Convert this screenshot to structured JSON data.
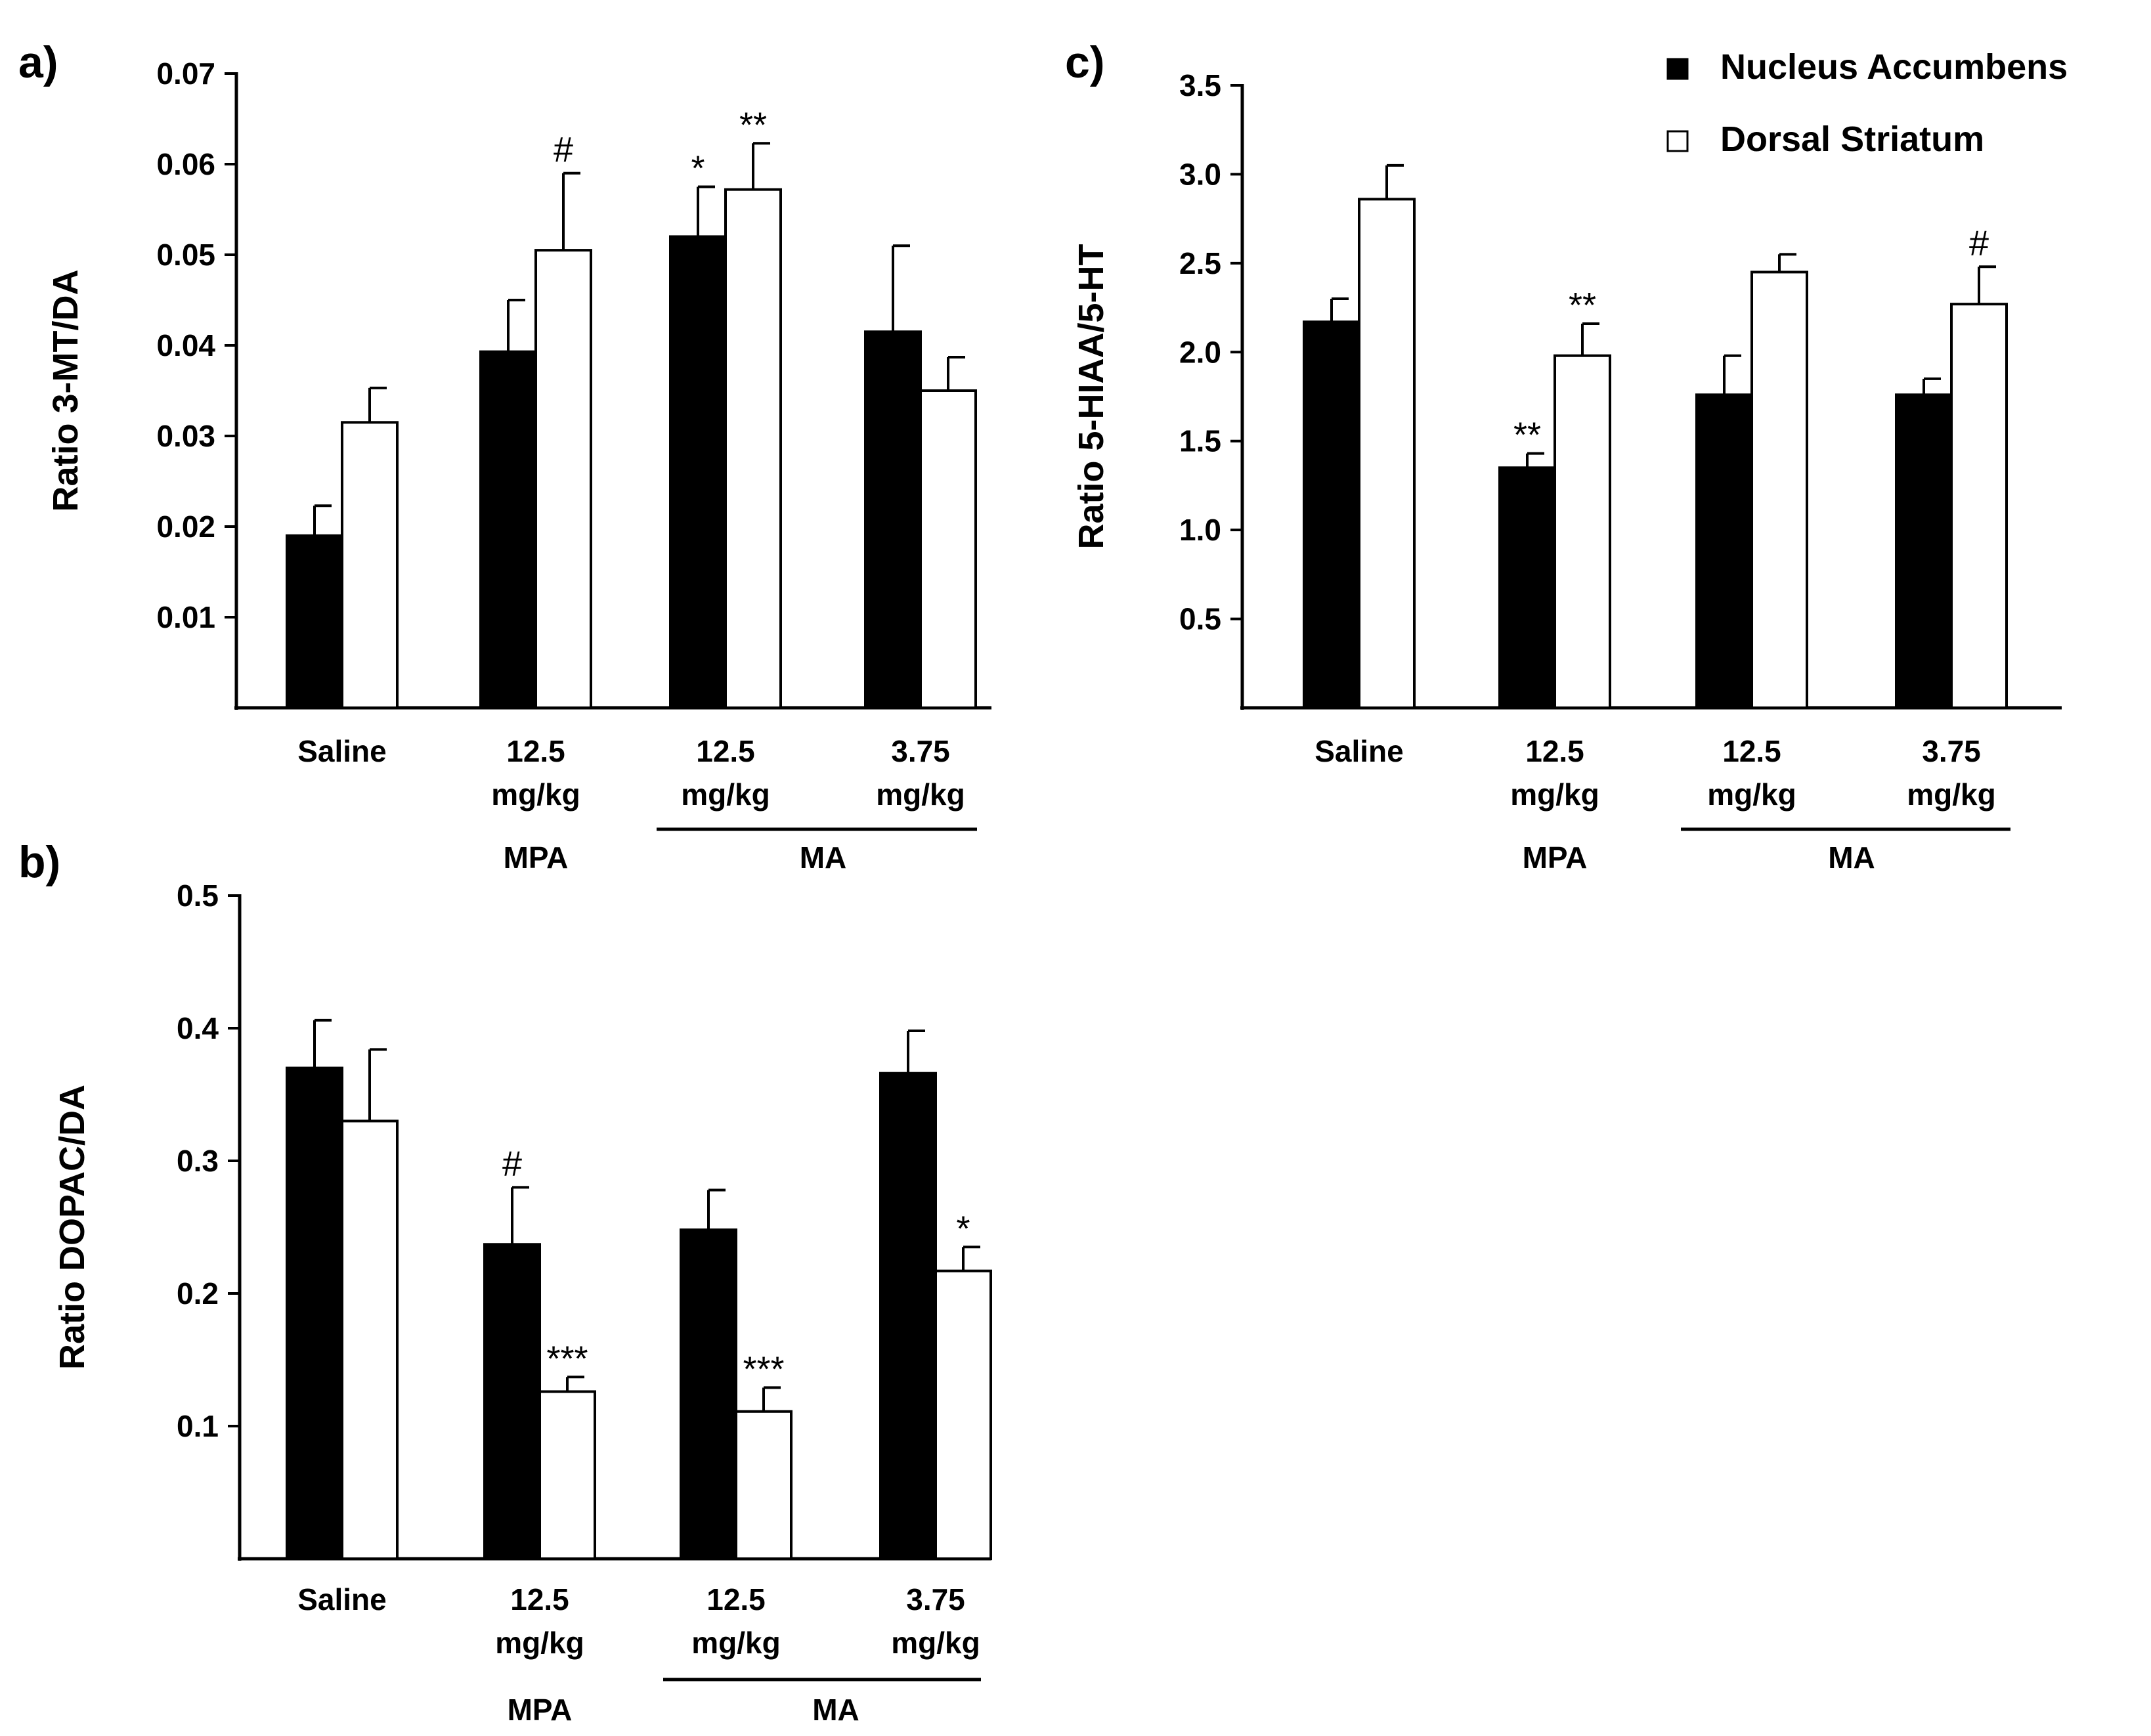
{
  "legend": {
    "items": [
      {
        "label": "Nucleus Accumbens",
        "fill": "#000000"
      },
      {
        "label": "Dorsal Striatum",
        "fill": "#ffffff"
      }
    ]
  },
  "chart_data": [
    {
      "panel": "a)",
      "type": "bar",
      "ylabel": "Ratio 3-MT/DA",
      "ylim": [
        0,
        0.07
      ],
      "yticks": [
        0.01,
        0.02,
        0.03,
        0.04,
        0.05,
        0.06,
        0.07
      ],
      "tick_labels": [
        "0.01",
        "0.02",
        "0.03",
        "0.04",
        "0.05",
        "0.06",
        "0.07"
      ],
      "categories": [
        [
          "Saline"
        ],
        [
          "12.5",
          "mg/kg"
        ],
        [
          "12.5",
          "mg/kg"
        ],
        [
          "3.75",
          "mg/kg"
        ]
      ],
      "groups": [
        {
          "label": "MPA",
          "categories": [
            1
          ],
          "underline": false
        },
        {
          "label": "MA",
          "categories": [
            2,
            3
          ],
          "underline": true
        }
      ],
      "series": [
        {
          "name": "Nucleus Accumbens",
          "values": [
            0.019,
            0.0393,
            0.052,
            0.0415
          ],
          "errors": [
            0.0033,
            0.0057,
            0.0055,
            0.0095
          ],
          "annotations": [
            "",
            "",
            "*",
            ""
          ]
        },
        {
          "name": "Dorsal Striatum",
          "values": [
            0.0315,
            0.0505,
            0.0572,
            0.035
          ],
          "errors": [
            0.0038,
            0.0085,
            0.0051,
            0.0037
          ],
          "annotations": [
            "",
            "#",
            "**",
            ""
          ]
        }
      ]
    },
    {
      "panel": "b)",
      "type": "bar",
      "ylabel": "Ratio DOPAC/DA",
      "ylim": [
        0,
        0.5
      ],
      "yticks": [
        0.1,
        0.2,
        0.3,
        0.4,
        0.5
      ],
      "tick_labels": [
        "0.1",
        "0.2",
        "0.3",
        "0.4",
        "0.5"
      ],
      "categories": [
        [
          "Saline"
        ],
        [
          "12.5",
          "mg/kg"
        ],
        [
          "12.5",
          "mg/kg"
        ],
        [
          "3.75",
          "mg/kg"
        ]
      ],
      "groups": [
        {
          "label": "MPA",
          "categories": [
            1
          ],
          "underline": false
        },
        {
          "label": "MA",
          "categories": [
            2,
            3
          ],
          "underline": true
        }
      ],
      "series": [
        {
          "name": "Nucleus Accumbens",
          "values": [
            0.37,
            0.237,
            0.248,
            0.366
          ],
          "errors": [
            0.036,
            0.043,
            0.03,
            0.032
          ],
          "annotations": [
            "",
            "#",
            "",
            ""
          ]
        },
        {
          "name": "Dorsal Striatum",
          "values": [
            0.33,
            0.126,
            0.111,
            0.217
          ],
          "errors": [
            0.054,
            0.011,
            0.018,
            0.018
          ],
          "annotations": [
            "",
            "***",
            "***",
            "*"
          ]
        }
      ]
    },
    {
      "panel": "c)",
      "type": "bar",
      "ylabel": "Ratio 5-HIAA/5-HT",
      "ylim": [
        0,
        3.5
      ],
      "yticks": [
        0.5,
        1.0,
        1.5,
        2.0,
        2.5,
        3.0,
        3.5
      ],
      "tick_labels": [
        "0.5",
        "1.0",
        "1.5",
        "2.0",
        "2.5",
        "3.0",
        "3.5"
      ],
      "categories": [
        [
          "Saline"
        ],
        [
          "12.5",
          "mg/kg"
        ],
        [
          "12.5",
          "mg/kg"
        ],
        [
          "3.75",
          "mg/kg"
        ]
      ],
      "groups": [
        {
          "label": "MPA",
          "categories": [
            1
          ],
          "underline": false
        },
        {
          "label": "MA",
          "categories": [
            2,
            3
          ],
          "underline": true
        }
      ],
      "series": [
        {
          "name": "Nucleus Accumbens",
          "values": [
            2.17,
            1.35,
            1.76,
            1.76
          ],
          "errors": [
            0.13,
            0.08,
            0.22,
            0.09
          ],
          "annotations": [
            "",
            "**",
            "",
            ""
          ]
        },
        {
          "name": "Dorsal Striatum",
          "values": [
            2.86,
            1.98,
            2.45,
            2.27
          ],
          "errors": [
            0.19,
            0.18,
            0.1,
            0.21
          ],
          "annotations": [
            "",
            "**",
            "",
            "#"
          ]
        }
      ]
    }
  ]
}
